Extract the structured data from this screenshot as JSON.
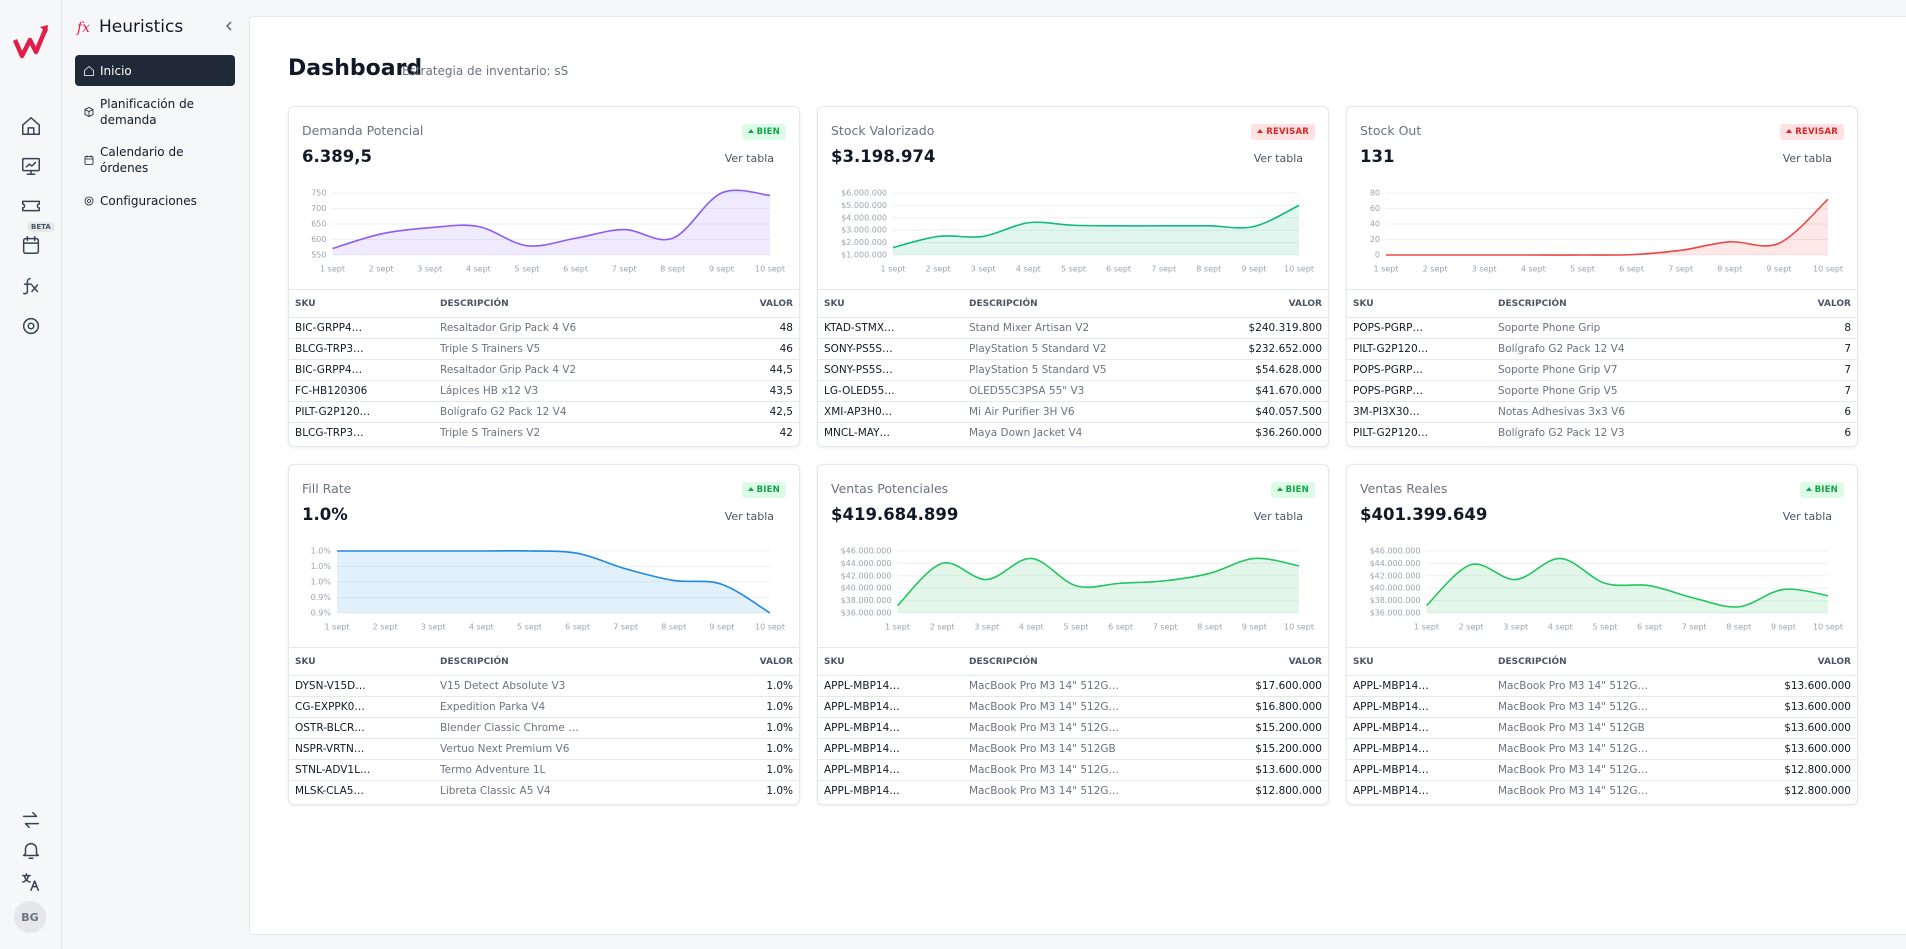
{
  "sidebar": {
    "badge": "BETA",
    "avatar": "BG"
  },
  "nav": {
    "title": "Heuristics",
    "items": [
      "Inicio",
      "Planificación de demanda",
      "Calendario de órdenes",
      "Configuraciones"
    ]
  },
  "header": {
    "title": "Dashboard",
    "subtitle": "Estrategia de inventario: sS"
  },
  "cards": [
    {
      "title": "Demanda Potencial",
      "status": "BIEN",
      "status_tone": "good",
      "value": "6.389,5",
      "link": "Ver tabla",
      "chart": {
        "type": "line",
        "color": "#8b5cf6",
        "x": [
          "1 sept",
          "2 sept",
          "3 sept",
          "4 sept",
          "5 sept",
          "6 sept",
          "7 sept",
          "8 sept",
          "9 sept",
          "10 sept"
        ],
        "values": [
          571,
          618,
          638,
          642,
          580,
          604,
          632,
          604,
          750,
          742
        ],
        "ylim": [
          550,
          750
        ],
        "yticks": [
          750,
          700,
          650,
          600,
          550
        ],
        "grid": true
      },
      "table": {
        "columns": [
          "SKU",
          "DESCRIPCIÓN",
          "VALOR"
        ],
        "rows": [
          [
            "BIC-GRPP4…",
            "Resaltador Grip Pack 4 V6",
            "48"
          ],
          [
            "BLCG-TRP3…",
            "Triple S Trainers V5",
            "46"
          ],
          [
            "BIC-GRPP4…",
            "Resaltador Grip Pack 4 V2",
            "44,5"
          ],
          [
            "FC-HB120306",
            "Lápices HB x12 V3",
            "43,5"
          ],
          [
            "PILT-G2P120…",
            "Bolígrafo G2 Pack 12 V4",
            "42,5"
          ],
          [
            "BLCG-TRP3…",
            "Triple S Trainers V2",
            "42"
          ]
        ]
      }
    },
    {
      "title": "Stock Valorizado",
      "status": "REVISAR",
      "status_tone": "bad",
      "value": "$3.198.974",
      "link": "Ver tabla",
      "chart": {
        "type": "line",
        "color": "#10b981",
        "x": [
          "1 sept",
          "2 sept",
          "3 sept",
          "4 sept",
          "5 sept",
          "6 sept",
          "7 sept",
          "8 sept",
          "9 sept",
          "10 sept"
        ],
        "values": [
          1600000,
          2500000,
          2500000,
          3600000,
          3400000,
          3350000,
          3350000,
          3350000,
          3300000,
          5000000
        ],
        "ylim": [
          1000000,
          6000000
        ],
        "yticks": [
          {
            "value": 6000000,
            "label": "$6.000.000"
          },
          {
            "value": 5000000,
            "label": "$5.000.000"
          },
          {
            "value": 4000000,
            "label": "$4.000.000"
          },
          {
            "value": 3000000,
            "label": "$3.000.000"
          },
          {
            "value": 2000000,
            "label": "$2.000.000"
          },
          {
            "value": 1000000,
            "label": "$1.000.000"
          }
        ],
        "grid": true
      },
      "table": {
        "columns": [
          "SKU",
          "DESCRIPCIÓN",
          "VALOR"
        ],
        "rows": [
          [
            "KTAD-STMX…",
            "Stand Mixer Artisan V2",
            "$240.319.800"
          ],
          [
            "SONY-PS5S…",
            "PlayStation 5 Standard V2",
            "$232.652.000"
          ],
          [
            "SONY-PS5S…",
            "PlayStation 5 Standard V5",
            "$54.628.000"
          ],
          [
            "LG-OLED55…",
            "OLED55C3PSA 55\" V3",
            "$41.670.000"
          ],
          [
            "XMI-AP3H0…",
            "Mi Air Purifier 3H V6",
            "$40.057.500"
          ],
          [
            "MNCL-MAY…",
            "Maya Down Jacket V4",
            "$36.260.000"
          ]
        ]
      }
    },
    {
      "title": "Stock Out",
      "status": "REVISAR",
      "status_tone": "bad",
      "value": "131",
      "link": "Ver tabla",
      "chart": {
        "type": "line",
        "color": "#ef4444",
        "x": [
          "1 sept",
          "2 sept",
          "3 sept",
          "4 sept",
          "5 sept",
          "6 sept",
          "7 sept",
          "8 sept",
          "9 sept",
          "10 sept"
        ],
        "values": [
          0,
          0,
          0,
          0,
          0,
          0.5,
          6,
          17,
          15,
          72
        ],
        "ylim": [
          0,
          80
        ],
        "yticks": [
          80,
          60,
          40,
          20,
          0
        ],
        "grid": true
      },
      "table": {
        "columns": [
          "SKU",
          "DESCRIPCIÓN",
          "VALOR"
        ],
        "rows": [
          [
            "POPS-PGRP…",
            "Soporte Phone Grip",
            "8"
          ],
          [
            "PILT-G2P120…",
            "Bolígrafo G2 Pack 12 V4",
            "7"
          ],
          [
            "POPS-PGRP…",
            "Soporte Phone Grip V7",
            "7"
          ],
          [
            "POPS-PGRP…",
            "Soporte Phone Grip V5",
            "7"
          ],
          [
            "3M-PI3X30…",
            "Notas Adhesivas 3x3 V6",
            "6"
          ],
          [
            "PILT-G2P120…",
            "Bolígrafo G2 Pack 12 V3",
            "6"
          ]
        ]
      }
    },
    {
      "title": "Fill Rate",
      "status": "BIEN",
      "status_tone": "good",
      "value": "1.0%",
      "link": "Ver tabla",
      "chart": {
        "type": "line",
        "color": "#1e88e5",
        "x": [
          "1 sept",
          "2 sept",
          "3 sept",
          "4 sept",
          "5 sept",
          "6 sept",
          "7 sept",
          "8 sept",
          "9 sept",
          "10 sept"
        ],
        "values": [
          1.0,
          1.0,
          1.0,
          1.0,
          1.0,
          0.997,
          0.977,
          0.962,
          0.957,
          0.92
        ],
        "ylim": [
          0.92,
          1.0
        ],
        "yticks": [
          {
            "value": 1.0,
            "label": "1.0%"
          },
          {
            "value": 0.98,
            "label": "1.0%"
          },
          {
            "value": 0.96,
            "label": "1.0%"
          },
          {
            "value": 0.94,
            "label": "0.9%"
          },
          {
            "value": 0.92,
            "label": "0.9%"
          }
        ],
        "grid": true
      },
      "table": {
        "columns": [
          "SKU",
          "DESCRIPCIÓN",
          "VALOR"
        ],
        "rows": [
          [
            "DYSN-V15D…",
            "V15 Detect Absolute V3",
            "1.0%"
          ],
          [
            "CG-EXPPK0…",
            "Expedition Parka V4",
            "1.0%"
          ],
          [
            "OSTR-BLCR…",
            "Blender Classic Chrome …",
            "1.0%"
          ],
          [
            "NSPR-VRTN…",
            "Vertuo Next Premium V6",
            "1.0%"
          ],
          [
            "STNL-ADV1L…",
            "Termo Adventure 1L",
            "1.0%"
          ],
          [
            "MLSK-CLA5…",
            "Libreta Classic A5 V4",
            "1.0%"
          ]
        ]
      }
    },
    {
      "title": "Ventas Potenciales",
      "status": "BIEN",
      "status_tone": "good",
      "value": "$419.684.899",
      "link": "Ver tabla",
      "chart": {
        "type": "line",
        "color": "#22c55e",
        "x": [
          "1 sept",
          "2 sept",
          "3 sept",
          "4 sept",
          "5 sept",
          "6 sept",
          "7 sept",
          "8 sept",
          "9 sept",
          "10 sept"
        ],
        "values": [
          37200000,
          44000000,
          41400000,
          44800000,
          40400000,
          40800000,
          41200000,
          42400000,
          44800000,
          43600000
        ],
        "ylim": [
          36000000,
          46000000
        ],
        "yticks": [
          {
            "value": 46000000,
            "label": "$46.000.000"
          },
          {
            "value": 44000000,
            "label": "$44.000.000"
          },
          {
            "value": 42000000,
            "label": "$42.000.000"
          },
          {
            "value": 40000000,
            "label": "$40.000.000"
          },
          {
            "value": 38000000,
            "label": "$38.000.000"
          },
          {
            "value": 36000000,
            "label": "$36.000.000"
          }
        ],
        "grid": true
      },
      "table": {
        "columns": [
          "SKU",
          "DESCRIPCIÓN",
          "VALOR"
        ],
        "rows": [
          [
            "APPL-MBP14…",
            "MacBook Pro M3 14\" 512G…",
            "$17.600.000"
          ],
          [
            "APPL-MBP14…",
            "MacBook Pro M3 14\" 512G…",
            "$16.800.000"
          ],
          [
            "APPL-MBP14…",
            "MacBook Pro M3 14\" 512G…",
            "$15.200.000"
          ],
          [
            "APPL-MBP14…",
            "MacBook Pro M3 14\" 512GB",
            "$15.200.000"
          ],
          [
            "APPL-MBP14…",
            "MacBook Pro M3 14\" 512G…",
            "$13.600.000"
          ],
          [
            "APPL-MBP14…",
            "MacBook Pro M3 14\" 512G…",
            "$12.800.000"
          ]
        ]
      }
    },
    {
      "title": "Ventas Reales",
      "status": "BIEN",
      "status_tone": "good",
      "value": "$401.399.649",
      "link": "Ver tabla",
      "chart": {
        "type": "line",
        "color": "#22c55e",
        "x": [
          "1 sept",
          "2 sept",
          "3 sept",
          "4 sept",
          "5 sept",
          "6 sept",
          "7 sept",
          "8 sept",
          "9 sept",
          "10 sept"
        ],
        "values": [
          37200000,
          43800000,
          41400000,
          44800000,
          40800000,
          40400000,
          38400000,
          37000000,
          39800000,
          38800000
        ],
        "ylim": [
          36000000,
          46000000
        ],
        "yticks": [
          {
            "value": 46000000,
            "label": "$46.000.000"
          },
          {
            "value": 44000000,
            "label": "$44.000.000"
          },
          {
            "value": 42000000,
            "label": "$42.000.000"
          },
          {
            "value": 40000000,
            "label": "$40.000.000"
          },
          {
            "value": 38000000,
            "label": "$38.000.000"
          },
          {
            "value": 36000000,
            "label": "$36.000.000"
          }
        ],
        "grid": true
      },
      "table": {
        "columns": [
          "SKU",
          "DESCRIPCIÓN",
          "VALOR"
        ],
        "rows": [
          [
            "APPL-MBP14…",
            "MacBook Pro M3 14\" 512G…",
            "$13.600.000"
          ],
          [
            "APPL-MBP14…",
            "MacBook Pro M3 14\" 512G…",
            "$13.600.000"
          ],
          [
            "APPL-MBP14…",
            "MacBook Pro M3 14\" 512GB",
            "$13.600.000"
          ],
          [
            "APPL-MBP14…",
            "MacBook Pro M3 14\" 512G…",
            "$13.600.000"
          ],
          [
            "APPL-MBP14…",
            "MacBook Pro M3 14\" 512G…",
            "$12.800.000"
          ],
          [
            "APPL-MBP14…",
            "MacBook Pro M3 14\" 512G…",
            "$12.800.000"
          ]
        ]
      }
    }
  ]
}
